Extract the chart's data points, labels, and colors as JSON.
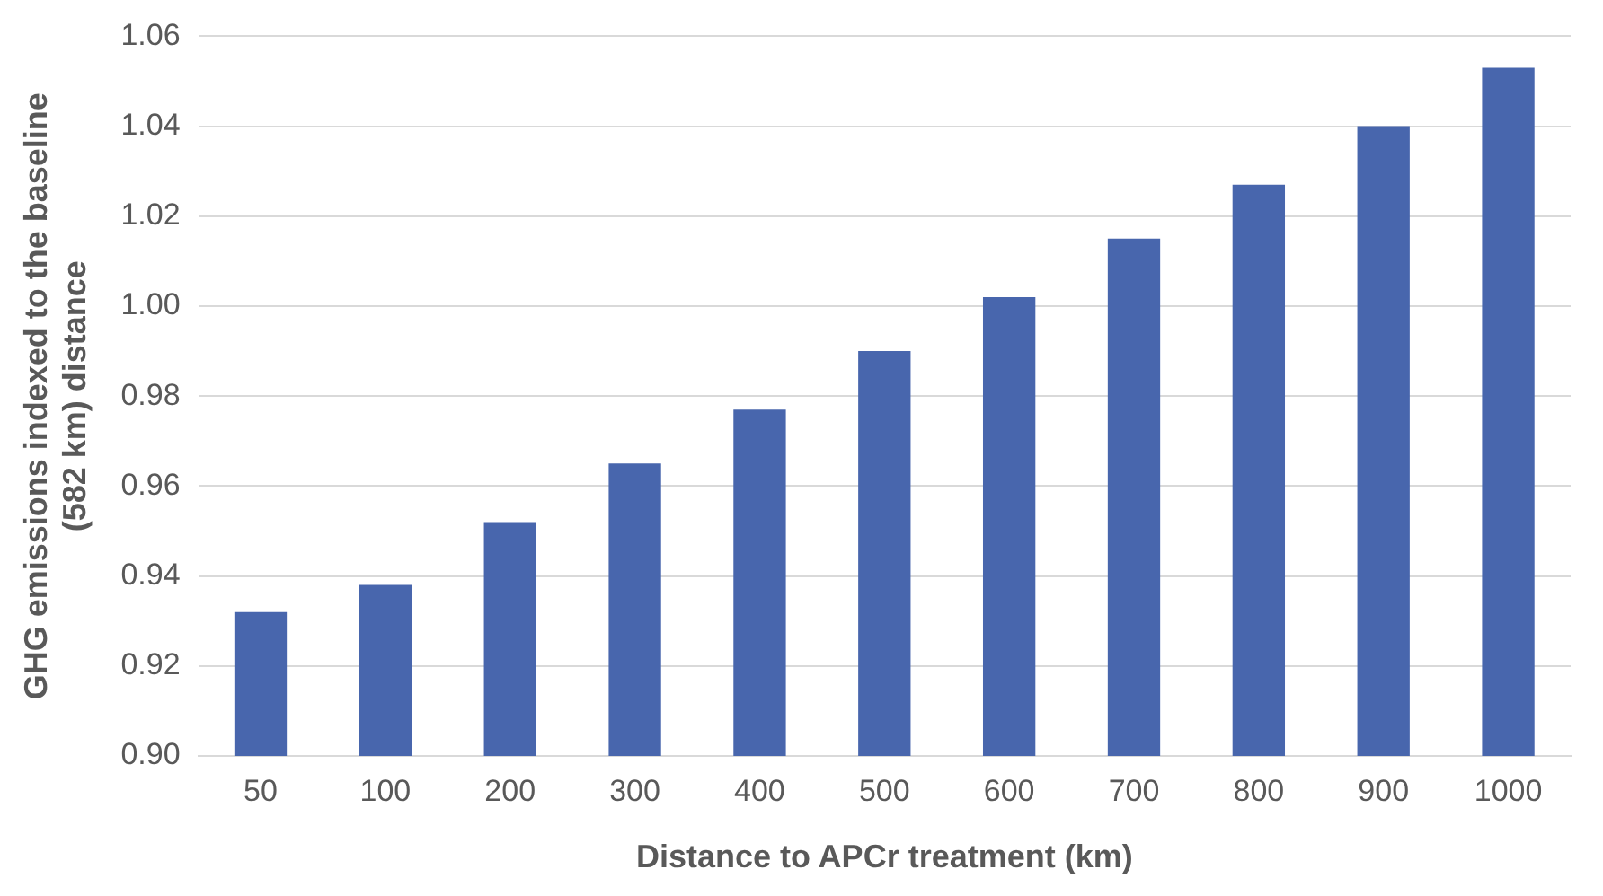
{
  "chart_data": {
    "type": "bar",
    "xlabel": "Distance to APCr treatment (km)",
    "ylabel": "GHG emissions indexed to the baseline (582 km) distance",
    "categories": [
      "50",
      "100",
      "200",
      "300",
      "400",
      "500",
      "600",
      "700",
      "800",
      "900",
      "1000"
    ],
    "values": [
      0.932,
      0.938,
      0.952,
      0.965,
      0.977,
      0.99,
      1.002,
      1.015,
      1.027,
      1.04,
      1.053
    ],
    "color": "#4866ad",
    "ylim": [
      0.9,
      1.06
    ],
    "yticks": [
      {
        "value": 0.9,
        "label": "0.90"
      },
      {
        "value": 0.92,
        "label": "0.92"
      },
      {
        "value": 0.94,
        "label": "0.94"
      },
      {
        "value": 0.96,
        "label": "0.96"
      },
      {
        "value": 0.98,
        "label": "0.98"
      },
      {
        "value": 1.0,
        "label": "1.00"
      },
      {
        "value": 1.02,
        "label": "1.02"
      },
      {
        "value": 1.04,
        "label": "1.04"
      },
      {
        "value": 1.06,
        "label": "1.06"
      }
    ],
    "grid": "y"
  }
}
